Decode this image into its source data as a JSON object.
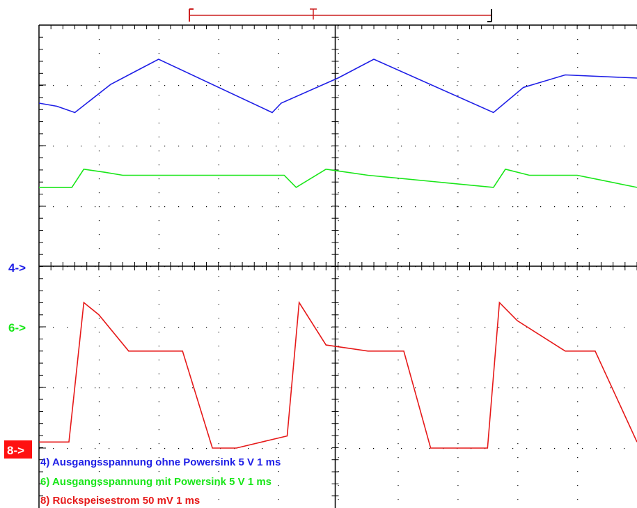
{
  "chart_data": {
    "type": "line",
    "title": "",
    "xlabel": "",
    "ylabel": "",
    "x_unit": "ms",
    "xlim": [
      0,
      10
    ],
    "grid": true,
    "grid_divisions": {
      "x": 10,
      "y": 8
    },
    "legend_position": "bottom-left",
    "timebase_label": "1 ms",
    "series": [
      {
        "id": "ch4",
        "legend": "4) Ausgangsspannung ohne Powersink",
        "scale": "5 V",
        "timebase": "1 ms",
        "marker": "4->",
        "color": "#1f1fe6",
        "ground_div": 4,
        "x": [
          0,
          0.3,
          0.6,
          1.2,
          1.6,
          2.0,
          3.9,
          4.05,
          5.0,
          5.6,
          7.6,
          8.1,
          8.8,
          10.0
        ],
        "y": [
          2.6,
          2.55,
          2.45,
          2.9,
          3.1,
          3.3,
          2.45,
          2.6,
          3.0,
          3.3,
          2.45,
          2.85,
          3.05,
          3.0
        ]
      },
      {
        "id": "ch6",
        "legend": "6) Ausgangsspannung mit Powersink",
        "scale": "5 V",
        "timebase": "1 ms",
        "marker": "6->",
        "color": "#19e619",
        "ground_div": 3,
        "x": [
          0,
          0.55,
          0.75,
          1.1,
          1.4,
          2.0,
          4.1,
          4.3,
          4.8,
          5.5,
          7.6,
          7.8,
          8.2,
          9.0,
          10.0
        ],
        "y": [
          2.3,
          2.3,
          2.6,
          2.55,
          2.5,
          2.5,
          2.5,
          2.3,
          2.6,
          2.5,
          2.3,
          2.6,
          2.5,
          2.5,
          2.3
        ],
        "y_note": "divisions above ground marker"
      },
      {
        "id": "ch8",
        "legend": "8) Rückspeisestrom  50 mV   1 ms",
        "scale": "50 mV",
        "timebase": "1 ms",
        "marker": "8->",
        "color": "#e61919",
        "ground_div": 0,
        "x": [
          0,
          0.5,
          0.75,
          1.0,
          1.5,
          2.4,
          2.9,
          3.3,
          4.15,
          4.35,
          4.8,
          5.5,
          6.1,
          6.55,
          7.5,
          7.7,
          8.0,
          8.8,
          9.3,
          10.0
        ],
        "y": [
          0.1,
          0.1,
          2.4,
          2.2,
          1.6,
          1.6,
          0.0,
          0.0,
          0.2,
          2.4,
          1.7,
          1.6,
          1.6,
          0.0,
          0.0,
          2.4,
          2.1,
          1.6,
          1.6,
          0.1
        ],
        "y_note": "divisions above ground marker"
      }
    ]
  },
  "markers": {
    "ch4": "4->",
    "ch6": "6->",
    "ch8": "8->"
  },
  "legend": {
    "ch4_text": "4) Ausgangsspannung ohne Powersink  5  V    1 ms",
    "ch6_text": "6) Ausgangsspannung mit Powersink  5  V    1 ms",
    "ch8_text": "8) Rückspeisestrom  50 mV   1 ms"
  },
  "colors": {
    "grid": "#000000",
    "background": "#ffffff",
    "ch4": "#1f1fe6",
    "ch6": "#19e619",
    "ch8": "#e61919",
    "cursor_bar": "#cc1f1f"
  }
}
